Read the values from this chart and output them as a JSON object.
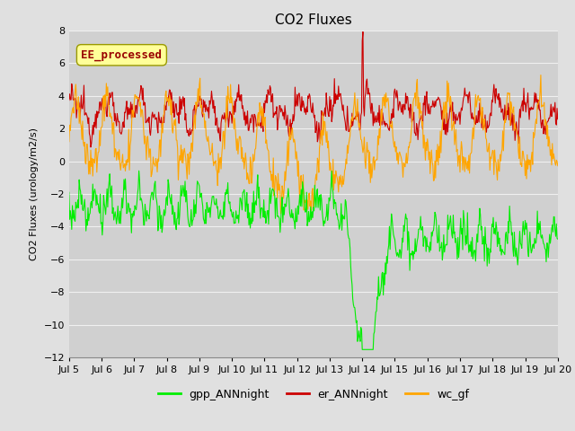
{
  "title": "CO2 Fluxes",
  "ylabel": "CO2 Fluxes (urology/m2/s)",
  "ylim": [
    -12,
    8
  ],
  "yticks": [
    -12,
    -10,
    -8,
    -6,
    -4,
    -2,
    0,
    2,
    4,
    6,
    8
  ],
  "xtick_labels": [
    "Jul 5",
    "Jul 6",
    "Jul 7",
    "Jul 8",
    "Jul 9",
    "Jul 10",
    "Jul 11",
    "Jul 12",
    "Jul 13",
    "Jul 14",
    "Jul 15",
    "Jul 16",
    "Jul 17",
    "Jul 18",
    "Jul 19",
    "Jul 20"
  ],
  "legend_labels": [
    "gpp_ANNnight",
    "er_ANNnight",
    "wc_gf"
  ],
  "legend_colors": [
    "#00ee00",
    "#cc0000",
    "#ffa500"
  ],
  "line_colors": [
    "#00ee00",
    "#cc0000",
    "#ffa500"
  ],
  "line_width": 0.8,
  "bg_color": "#e0e0e0",
  "plot_bg_color": "#d0d0d0",
  "grid_color": "#f0f0f0",
  "annotation_text": "EE_processed",
  "annotation_color": "#990000",
  "annotation_bg": "#ffff99",
  "title_fontsize": 11,
  "label_fontsize": 8,
  "tick_fontsize": 8,
  "legend_fontsize": 9
}
